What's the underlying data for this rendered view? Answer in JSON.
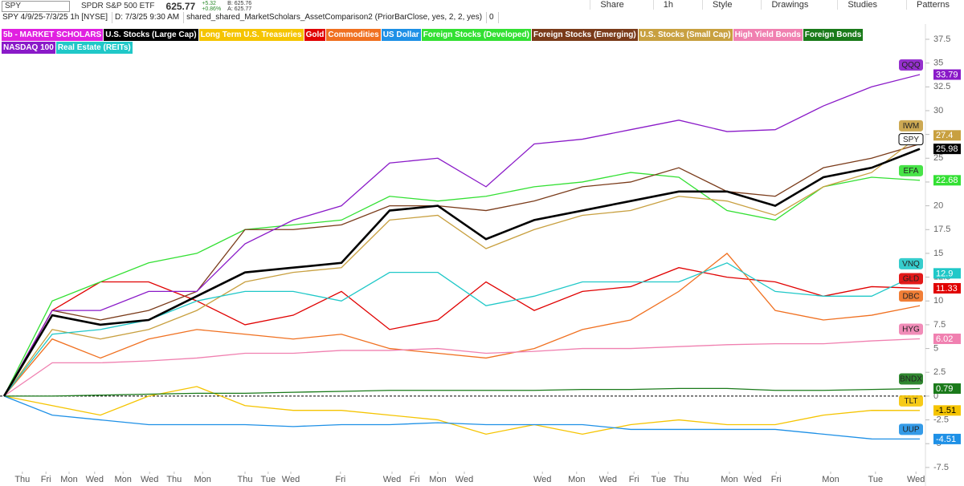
{
  "toolbar": {
    "symbol": "SPY",
    "name": "SPDR S&P 500 ETF",
    "price": "625.77",
    "change": "+5.32",
    "change_pct": "+0.86%",
    "bid": "B: 625.76",
    "ask": "A: 625.77",
    "buttons": [
      "Share",
      "1h",
      "Style",
      "Drawings",
      "Studies",
      "Patterns"
    ]
  },
  "info": {
    "range": "SPY 4/9/25-7/3/25 1h [NYSE]",
    "date": "D: 7/3/25 9:30 AM",
    "study": "shared_shared_MarketScholars_AssetComparison2 (PriorBarClose, yes, 2, 2, yes)",
    "value": "0"
  },
  "chart_data": {
    "type": "line",
    "legend_title": "5b - MARKET SCHOLARS",
    "x": [
      0,
      1,
      2,
      3,
      4,
      5,
      6,
      7,
      8,
      9,
      10,
      11,
      12,
      13,
      14,
      15,
      16,
      17,
      18,
      19
    ],
    "xlim": [
      0,
      19
    ],
    "xticks": [
      {
        "value": 0.38,
        "label": "Thu"
      },
      {
        "value": 0.87,
        "label": "Fri"
      },
      {
        "value": 1.35,
        "label": "Mon"
      },
      {
        "value": 1.88,
        "label": "Wed"
      },
      {
        "value": 2.47,
        "label": "Mon"
      },
      {
        "value": 3.02,
        "label": "Wed"
      },
      {
        "value": 3.53,
        "label": "Thu"
      },
      {
        "value": 4.12,
        "label": "Mon"
      },
      {
        "value": 5,
        "label": "Thu"
      },
      {
        "value": 5.48,
        "label": "Tue"
      },
      {
        "value": 5.95,
        "label": "Wed"
      },
      {
        "value": 6.98,
        "label": "Fri"
      },
      {
        "value": 8.05,
        "label": "Wed"
      },
      {
        "value": 8.52,
        "label": "Fri"
      },
      {
        "value": 9,
        "label": "Mon"
      },
      {
        "value": 9.55,
        "label": "Wed"
      },
      {
        "value": 11.17,
        "label": "Wed"
      },
      {
        "value": 11.88,
        "label": "Mon"
      },
      {
        "value": 12.53,
        "label": "Wed"
      },
      {
        "value": 13.07,
        "label": "Fri"
      },
      {
        "value": 13.58,
        "label": "Tue"
      },
      {
        "value": 14.05,
        "label": "Thu"
      },
      {
        "value": 15.05,
        "label": "Mon"
      },
      {
        "value": 15.53,
        "label": "Wed"
      },
      {
        "value": 16.02,
        "label": "Fri"
      },
      {
        "value": 17.15,
        "label": "Mon"
      },
      {
        "value": 18.08,
        "label": "Tue"
      },
      {
        "value": 18.92,
        "label": "Wed"
      }
    ],
    "ylim": [
      -8.1,
      39.1
    ],
    "yticks": [
      37.5,
      35,
      32.5,
      30,
      27.5,
      25,
      22.5,
      20,
      17.5,
      15,
      12.5,
      10,
      7.5,
      5,
      2.5,
      0,
      -2.5,
      -5,
      -7.5
    ],
    "grid": false,
    "series": [
      {
        "name": "U.S. Stocks (Large Cap)",
        "tag": "SPY",
        "color": "#000000",
        "end_label": "25.98",
        "values": [
          0,
          8.5,
          7.5,
          8,
          10.5,
          13,
          13.5,
          14,
          19.5,
          20,
          16.5,
          18.5,
          19.5,
          20.5,
          21.5,
          21.5,
          20,
          23,
          24,
          25.98
        ]
      },
      {
        "name": "Long Term U.S. Treasuries",
        "tag": "TLT",
        "color": "#f5c400",
        "end_label": "-1.51",
        "values": [
          0,
          -1,
          -2,
          0,
          1,
          -1,
          -1.5,
          -1.5,
          -2,
          -2.5,
          -4,
          -3,
          -4,
          -3,
          -2.5,
          -3,
          -3,
          -2,
          -1.5,
          -1.51
        ]
      },
      {
        "name": "Gold",
        "tag": "GLD",
        "color": "#e00000",
        "end_label": "11.33",
        "values": [
          0,
          9,
          12,
          12,
          10,
          7.5,
          8.5,
          11,
          7,
          8,
          12,
          9,
          11,
          11.5,
          13.5,
          12.5,
          12,
          10.5,
          11.5,
          11.33
        ]
      },
      {
        "name": "Commodities",
        "tag": "DBC",
        "color": "#f07020",
        "values": [
          0,
          6,
          4,
          6,
          7,
          6.5,
          6,
          6.5,
          5,
          4.5,
          4,
          5,
          7,
          8,
          11,
          15,
          9,
          8,
          8.5,
          9.5
        ]
      },
      {
        "name": "US Dollar",
        "tag": "UUP",
        "color": "#1e90e6",
        "end_label": "-4.51",
        "values": [
          0,
          -2,
          -2.5,
          -3,
          -3,
          -3,
          -3.2,
          -3,
          -3,
          -2.8,
          -3,
          -3,
          -3,
          -3.5,
          -3.5,
          -3.5,
          -3.5,
          -4,
          -4.5,
          -4.51
        ]
      },
      {
        "name": "Foreign Stocks (Developed)",
        "tag": "EFA",
        "color": "#33e033",
        "end_label": "22.68",
        "values": [
          0,
          10,
          12,
          14,
          15,
          17.5,
          18,
          18.5,
          21,
          20.5,
          21,
          22,
          22.5,
          23.5,
          23,
          19.5,
          18.5,
          22,
          23,
          22.68
        ]
      },
      {
        "name": "Foreign Stocks (Emerging)",
        "color": "#7a3b1a",
        "values": [
          0,
          9,
          8,
          9,
          11,
          17.5,
          17.5,
          18,
          20,
          20,
          19.5,
          20.5,
          22,
          22.5,
          24,
          21.5,
          21,
          24,
          25,
          26.5
        ]
      },
      {
        "name": "U.S. Stocks (Small Cap)",
        "tag": "IWM",
        "color": "#c8a040",
        "end_label": "27.4",
        "values": [
          0,
          7,
          6,
          7,
          9,
          12,
          13,
          13.5,
          18.5,
          19,
          15.5,
          17.5,
          19,
          19.5,
          21,
          20.5,
          19,
          22,
          23.5,
          27.4
        ]
      },
      {
        "name": "High Yield Bonds",
        "tag": "HYG",
        "color": "#f080b0",
        "end_label": "6.02",
        "values": [
          0,
          3.5,
          3.5,
          3.7,
          4,
          4.5,
          4.5,
          4.8,
          4.8,
          5,
          4.5,
          4.7,
          5,
          5,
          5.2,
          5.4,
          5.5,
          5.5,
          5.8,
          6.02
        ]
      },
      {
        "name": "Foreign Bonds",
        "tag": "BNDX",
        "color": "#1a7a1a",
        "end_label": "0.79",
        "values": [
          0,
          0,
          0.1,
          0.2,
          0.3,
          0.3,
          0.4,
          0.5,
          0.6,
          0.6,
          0.6,
          0.6,
          0.7,
          0.7,
          0.8,
          0.8,
          0.6,
          0.6,
          0.7,
          0.79
        ]
      },
      {
        "name": "NASDAQ 100",
        "tag": "QQQ",
        "color": "#8a1ac8",
        "end_label": "33.79",
        "values": [
          0,
          9,
          9,
          11,
          11,
          16,
          18.5,
          20,
          24.5,
          25,
          22,
          26.5,
          27,
          28,
          29,
          27.8,
          28,
          30.5,
          32.5,
          33.79
        ]
      },
      {
        "name": "Real Estate (REITs)",
        "tag": "VNQ",
        "color": "#20c8c8",
        "end_label": "12.9",
        "values": [
          0,
          6.5,
          7,
          8,
          10,
          11,
          11,
          10,
          13,
          13,
          9.5,
          10.5,
          12,
          12,
          12,
          14,
          11,
          10.5,
          10.5,
          12.9
        ]
      }
    ]
  }
}
